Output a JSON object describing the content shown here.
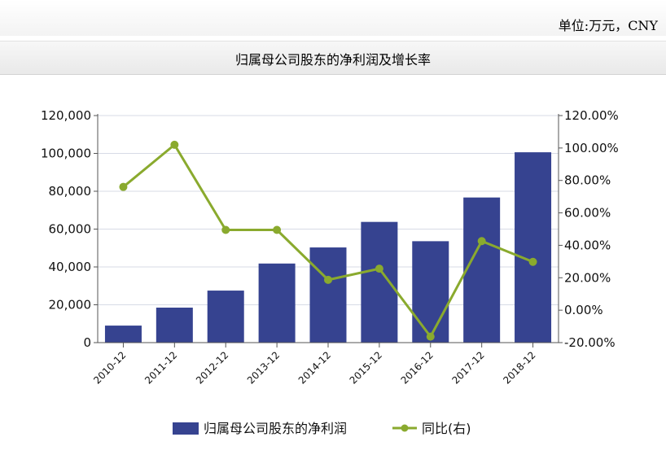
{
  "header": {
    "unit_label": "单位:万元，CNY",
    "chart_title": "归属母公司股东的净利润及增长率"
  },
  "colors": {
    "bar": "#364390",
    "line": "#8aaa2e"
  },
  "chart_data": {
    "type": "bar",
    "title": "归属母公司股东的净利润及增长率",
    "categories": [
      "2010-12",
      "2011-12",
      "2012-12",
      "2013-12",
      "2014-12",
      "2015-12",
      "2016-12",
      "2017-12",
      "2018-12"
    ],
    "series": [
      {
        "name": "归属母公司股东的净利润",
        "type": "bar",
        "axis": "left",
        "values": [
          9000,
          18500,
          27500,
          41800,
          50300,
          63800,
          53600,
          76700,
          100600
        ]
      },
      {
        "name": "同比(右)",
        "type": "line",
        "axis": "right",
        "values": [
          76.0,
          102.0,
          49.5,
          49.5,
          18.7,
          25.6,
          -16.3,
          42.6,
          29.8
        ]
      }
    ],
    "y_left": {
      "min": 0,
      "max": 120000,
      "ticks": [
        "0",
        "20,000",
        "40,000",
        "60,000",
        "80,000",
        "100,000",
        "120,000"
      ]
    },
    "y_right": {
      "min": -20,
      "max": 120,
      "ticks": [
        "-20.00%",
        "0.00%",
        "20.00%",
        "40.00%",
        "60.00%",
        "80.00%",
        "100.00%",
        "120.00%"
      ]
    },
    "grid": true,
    "legend": "bottom-center"
  }
}
